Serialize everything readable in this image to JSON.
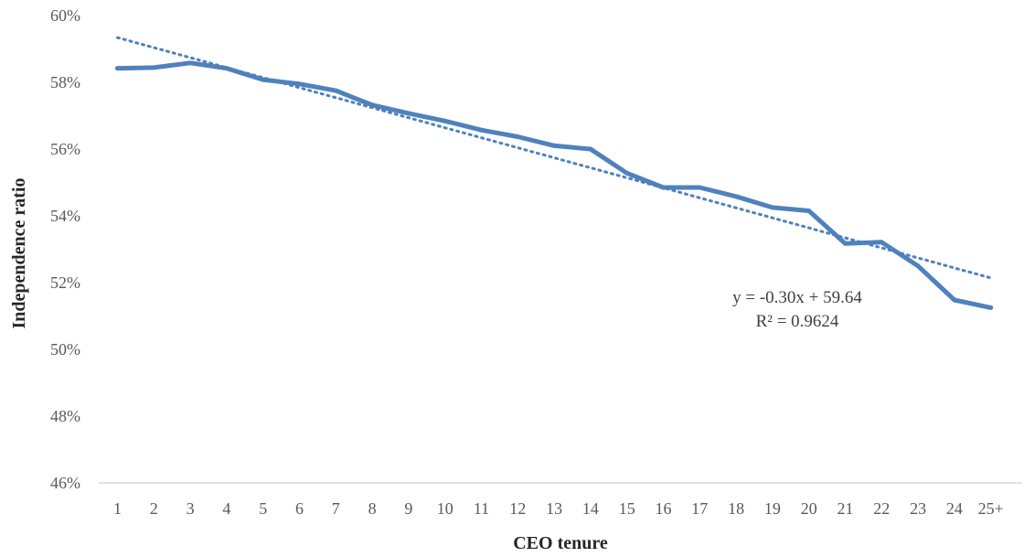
{
  "chart_data": {
    "type": "line",
    "title": "",
    "xlabel": "CEO tenure",
    "ylabel": "Independence ratio",
    "ylim": [
      46,
      60
    ],
    "y_ticks": [
      46,
      48,
      50,
      52,
      54,
      56,
      58,
      60
    ],
    "y_tick_labels": [
      "46%",
      "48%",
      "50%",
      "52%",
      "54%",
      "56%",
      "58%",
      "60%"
    ],
    "grid": false,
    "legend": "none",
    "categories": [
      "1",
      "2",
      "3",
      "4",
      "5",
      "6",
      "7",
      "8",
      "9",
      "10",
      "11",
      "12",
      "13",
      "14",
      "15",
      "16",
      "17",
      "18",
      "19",
      "20",
      "21",
      "22",
      "23",
      "24",
      "25+"
    ],
    "series": [
      {
        "values": [
          58.42,
          58.44,
          58.58,
          58.42,
          58.08,
          57.95,
          57.75,
          57.32,
          57.07,
          56.84,
          56.57,
          56.37,
          56.1,
          56.0,
          55.28,
          54.85,
          54.85,
          54.58,
          54.25,
          54.15,
          53.17,
          53.21,
          52.5,
          51.48,
          51.25
        ],
        "color": "#4f81bd"
      }
    ],
    "trendline": {
      "type": "linear",
      "slope": -0.3,
      "intercept": 59.64,
      "color": "#4f81bd",
      "style": "dotted",
      "equation_label": "y = -0.30x + 59.64",
      "r2_label": "R² = 0.9624"
    }
  }
}
